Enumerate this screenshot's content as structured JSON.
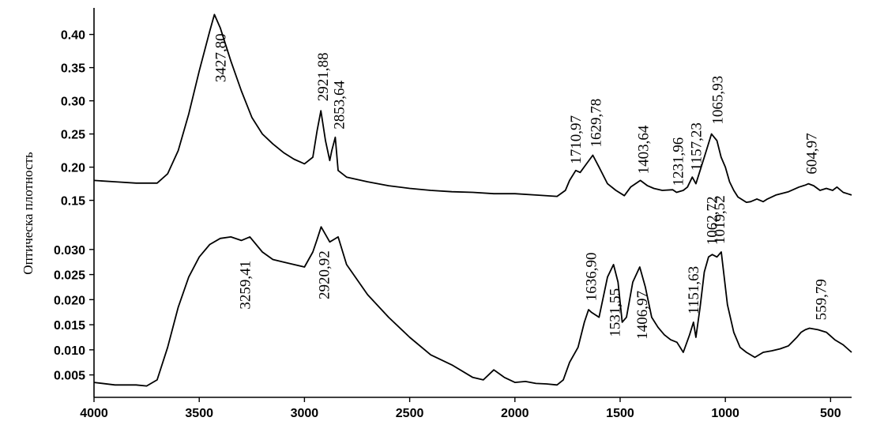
{
  "chart_data": {
    "type": "line",
    "ylabel": "Оптичеcка плотность",
    "x_range": [
      4000,
      400
    ],
    "x_ticks": [
      4000,
      3500,
      3000,
      2500,
      2000,
      1500,
      1000,
      500
    ],
    "panels": [
      {
        "name": "top",
        "ylim": [
          0.14,
          0.44
        ],
        "y_ticks": [
          "0.15",
          "0.20",
          "0.25",
          "0.30",
          "0.35",
          "0.40"
        ],
        "y_tick_values": [
          0.15,
          0.2,
          0.25,
          0.3,
          0.35,
          0.4
        ],
        "x": [
          4000,
          3900,
          3800,
          3700,
          3650,
          3600,
          3550,
          3500,
          3450,
          3427.8,
          3400,
          3350,
          3300,
          3250,
          3200,
          3150,
          3100,
          3050,
          3000,
          2960,
          2940,
          2921.88,
          2900,
          2880,
          2870,
          2853.64,
          2840,
          2800,
          2700,
          2600,
          2500,
          2400,
          2300,
          2200,
          2100,
          2000,
          1900,
          1800,
          1760,
          1740,
          1710.97,
          1690,
          1660,
          1629.78,
          1600,
          1560,
          1520,
          1480,
          1450,
          1403.64,
          1370,
          1340,
          1300,
          1250,
          1231.96,
          1200,
          1180,
          1157.23,
          1140,
          1120,
          1100,
          1065.93,
          1040,
          1020,
          1000,
          980,
          960,
          940,
          900,
          880,
          850,
          820,
          800,
          760,
          700,
          650,
          620,
          604.97,
          580,
          550,
          520,
          490,
          470,
          440,
          420,
          400
        ],
        "y": [
          0.18,
          0.178,
          0.176,
          0.176,
          0.19,
          0.225,
          0.28,
          0.345,
          0.405,
          0.43,
          0.41,
          0.36,
          0.315,
          0.275,
          0.25,
          0.235,
          0.222,
          0.212,
          0.205,
          0.215,
          0.255,
          0.285,
          0.24,
          0.21,
          0.225,
          0.245,
          0.195,
          0.185,
          0.178,
          0.172,
          0.168,
          0.165,
          0.163,
          0.162,
          0.16,
          0.16,
          0.158,
          0.156,
          0.165,
          0.18,
          0.195,
          0.192,
          0.205,
          0.218,
          0.2,
          0.175,
          0.165,
          0.157,
          0.17,
          0.18,
          0.172,
          0.168,
          0.165,
          0.166,
          0.162,
          0.165,
          0.17,
          0.185,
          0.175,
          0.195,
          0.215,
          0.25,
          0.24,
          0.215,
          0.2,
          0.178,
          0.165,
          0.155,
          0.147,
          0.148,
          0.152,
          0.148,
          0.152,
          0.158,
          0.163,
          0.17,
          0.173,
          0.175,
          0.172,
          0.165,
          0.168,
          0.165,
          0.17,
          0.162,
          0.16,
          0.158
        ]
      },
      {
        "name": "bottom",
        "ylim": [
          0.001,
          0.038
        ],
        "y_ticks": [
          "0.005",
          "0.010",
          "0.015",
          "0.020",
          "0.025",
          "0.030"
        ],
        "y_tick_values": [
          0.005,
          0.01,
          0.015,
          0.02,
          0.025,
          0.03
        ],
        "x": [
          4000,
          3900,
          3800,
          3750,
          3700,
          3650,
          3600,
          3550,
          3500,
          3450,
          3400,
          3350,
          3300,
          3259.41,
          3200,
          3150,
          3100,
          3050,
          3000,
          2960,
          2940,
          2920.92,
          2900,
          2880,
          2860,
          2840,
          2800,
          2700,
          2600,
          2500,
          2400,
          2300,
          2200,
          2150,
          2100,
          2050,
          2000,
          1950,
          1900,
          1850,
          1800,
          1770,
          1740,
          1700,
          1670,
          1650,
          1636.9,
          1600,
          1560,
          1531.55,
          1510,
          1490,
          1470,
          1440,
          1406.97,
          1380,
          1350,
          1320,
          1290,
          1260,
          1230,
          1200,
          1170,
          1151.63,
          1140,
          1120,
          1100,
          1080,
          1062.72,
          1040,
          1019.52,
          990,
          960,
          930,
          900,
          860,
          820,
          780,
          740,
          700,
          660,
          640,
          620,
          600,
          559.79,
          520,
          480,
          440,
          400
        ],
        "y": [
          0.0035,
          0.003,
          0.003,
          0.0028,
          0.004,
          0.0105,
          0.0185,
          0.0245,
          0.0285,
          0.031,
          0.0322,
          0.0325,
          0.0318,
          0.0325,
          0.0295,
          0.028,
          0.0275,
          0.027,
          0.0265,
          0.0295,
          0.032,
          0.0345,
          0.033,
          0.0315,
          0.032,
          0.0325,
          0.027,
          0.021,
          0.0165,
          0.0125,
          0.009,
          0.007,
          0.0045,
          0.004,
          0.006,
          0.0045,
          0.0035,
          0.0037,
          0.0033,
          0.0032,
          0.003,
          0.004,
          0.0075,
          0.0105,
          0.0155,
          0.018,
          0.0175,
          0.0165,
          0.0245,
          0.027,
          0.0235,
          0.0155,
          0.0165,
          0.0235,
          0.0265,
          0.0225,
          0.0165,
          0.0145,
          0.013,
          0.012,
          0.0115,
          0.0095,
          0.013,
          0.0155,
          0.0125,
          0.0185,
          0.0255,
          0.0285,
          0.029,
          0.0285,
          0.0295,
          0.019,
          0.0135,
          0.0105,
          0.0095,
          0.0085,
          0.0095,
          0.0098,
          0.0102,
          0.0108,
          0.0125,
          0.0135,
          0.014,
          0.0143,
          0.014,
          0.0135,
          0.012,
          0.011,
          0.0095
        ]
      }
    ],
    "annotations": [
      {
        "text": "3427,80",
        "panel": 0,
        "x": 3427.8,
        "y": 0.43
      },
      {
        "text": "2921,88",
        "panel": 0,
        "x": 2921.88,
        "y": 0.285
      },
      {
        "text": "2853,64",
        "panel": 0,
        "x": 2853.64,
        "y": 0.245
      },
      {
        "text": "1710,97",
        "panel": 0,
        "x": 1710.97,
        "y": 0.195
      },
      {
        "text": "1629,78",
        "panel": 0,
        "x": 1629.78,
        "y": 0.218
      },
      {
        "text": "1403,64",
        "panel": 0,
        "x": 1403.64,
        "y": 0.18
      },
      {
        "text": "1231,96",
        "panel": 0,
        "x": 1231.96,
        "y": 0.162
      },
      {
        "text": "1157,23",
        "panel": 0,
        "x": 1157.23,
        "y": 0.185
      },
      {
        "text": "1065,93",
        "panel": 0,
        "x": 1065.93,
        "y": 0.25
      },
      {
        "text": "604,97",
        "panel": 0,
        "x": 604.97,
        "y": 0.175
      },
      {
        "text": "3259,41",
        "panel": 1,
        "x": 3259.41,
        "y": 0.0325
      },
      {
        "text": "2920,92",
        "panel": 1,
        "x": 2920.92,
        "y": 0.0345
      },
      {
        "text": "1636,90",
        "panel": 1,
        "x": 1636.9,
        "y": 0.0175
      },
      {
        "text": "1531,55",
        "panel": 1,
        "x": 1531.55,
        "y": 0.027
      },
      {
        "text": "1406,97",
        "panel": 1,
        "x": 1406.97,
        "y": 0.0265
      },
      {
        "text": "1151,63",
        "panel": 1,
        "x": 1151.63,
        "y": 0.0155
      },
      {
        "text": "1062,72",
        "panel": 1,
        "x": 1062.72,
        "y": 0.029
      },
      {
        "text": "1019,52",
        "panel": 1,
        "x": 1019.52,
        "y": 0.0295
      },
      {
        "text": "559,79",
        "panel": 1,
        "x": 559.79,
        "y": 0.014
      }
    ]
  }
}
